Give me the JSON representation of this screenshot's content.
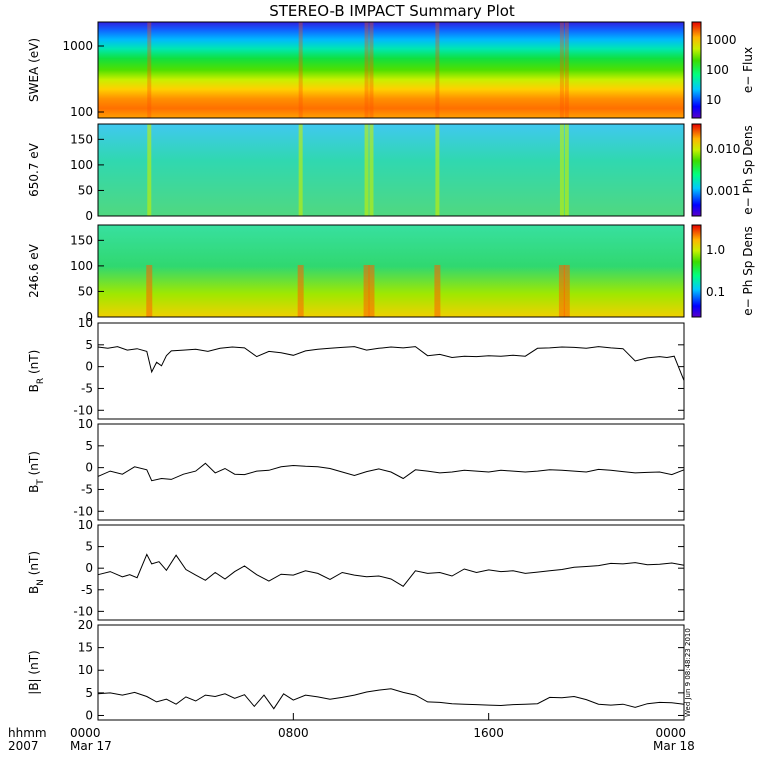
{
  "title": "STEREO-B IMPACT Summary Plot",
  "footer": {
    "hhmm": "hhmm",
    "year": "2007",
    "start_date": "Mar 17",
    "end_date": "Mar 18"
  },
  "timestamp": "Wed Jun 9 08:48:23 2010",
  "chart_data": [
    {
      "type": "heatmap",
      "ylabel": "SWEA (eV)",
      "ylog": true,
      "yticks": [
        "1000",
        "100"
      ],
      "colorbar": {
        "label": "e− Flux",
        "ticks": [
          "1000",
          "100",
          "10"
        ]
      },
      "description_values": {
        "flux_range_low": 10,
        "flux_range_high": 1000
      }
    },
    {
      "type": "heatmap",
      "ylabel": "650.7 eV",
      "ylim": [
        0,
        180
      ],
      "yticks": [
        "150",
        "100",
        "50",
        "0"
      ],
      "colorbar": {
        "label": "e− Ph Sp Dens",
        "ticks": [
          "0.010",
          "0.001"
        ]
      }
    },
    {
      "type": "heatmap",
      "ylabel": "246.6 eV",
      "ylim": [
        0,
        180
      ],
      "yticks": [
        "150",
        "100",
        "50",
        "0"
      ],
      "colorbar": {
        "label": "e− Ph Sp Dens",
        "ticks": [
          "1.0",
          "0.1"
        ]
      }
    },
    {
      "type": "line",
      "ylabel": "B_R (nT)",
      "ylim": [
        -12,
        10
      ],
      "yticks": [
        "10",
        "5",
        "0",
        "-5",
        "-10"
      ],
      "x": [
        0,
        0.4,
        0.8,
        1.2,
        1.6,
        2.0,
        2.2,
        2.4,
        2.6,
        2.8,
        3.0,
        3.5,
        4,
        4.5,
        5,
        5.5,
        6,
        6.5,
        7,
        7.5,
        8,
        8.5,
        9,
        9.5,
        10,
        10.5,
        11,
        11.5,
        12,
        12.5,
        13,
        13.5,
        14,
        14.5,
        15,
        15.5,
        16,
        16.5,
        17,
        17.5,
        18,
        18.5,
        19,
        19.5,
        20,
        20.5,
        21,
        21.5,
        22,
        22.5,
        23,
        23.3,
        23.6,
        24
      ],
      "y": [
        4.5,
        4.2,
        4.6,
        3.8,
        4.1,
        3.5,
        -1.2,
        1.0,
        0.2,
        2.5,
        3.6,
        3.8,
        4.0,
        3.5,
        4.2,
        4.5,
        4.3,
        2.3,
        3.5,
        3.2,
        2.6,
        3.6,
        4.0,
        4.2,
        4.4,
        4.6,
        3.8,
        4.2,
        4.5,
        4.3,
        4.6,
        2.5,
        2.8,
        2.1,
        2.4,
        2.3,
        2.5,
        2.4,
        2.6,
        2.4,
        4.2,
        4.3,
        4.5,
        4.4,
        4.2,
        4.6,
        4.3,
        4.1,
        1.3,
        2.0,
        2.3,
        2.1,
        2.4,
        -3.2
      ]
    },
    {
      "type": "line",
      "ylabel": "B_T (nT)",
      "ylim": [
        -12,
        10
      ],
      "yticks": [
        "10",
        "5",
        "0",
        "-5",
        "-10"
      ],
      "x": [
        0,
        0.5,
        1,
        1.5,
        2,
        2.2,
        2.6,
        3,
        3.5,
        4,
        4.4,
        4.8,
        5.2,
        5.6,
        6,
        6.5,
        7,
        7.5,
        8,
        8.5,
        9,
        9.5,
        10,
        10.5,
        11,
        11.5,
        12,
        12.5,
        13,
        13.5,
        14,
        14.5,
        15,
        15.5,
        16,
        16.5,
        17,
        17.5,
        18,
        18.5,
        19,
        19.5,
        20,
        20.5,
        21,
        21.5,
        22,
        22.5,
        23,
        23.5,
        24
      ],
      "y": [
        -2.0,
        -0.8,
        -1.5,
        0.2,
        -0.5,
        -3.0,
        -2.5,
        -2.7,
        -1.5,
        -0.8,
        1.0,
        -1.2,
        -0.2,
        -1.5,
        -1.6,
        -0.8,
        -0.6,
        0.2,
        0.5,
        0.3,
        0.2,
        -0.2,
        -1.0,
        -1.8,
        -0.9,
        -0.3,
        -1.0,
        -2.5,
        -0.5,
        -0.8,
        -1.2,
        -1.0,
        -0.6,
        -0.8,
        -1.0,
        -0.6,
        -0.8,
        -1.0,
        -0.8,
        -0.5,
        -0.6,
        -0.8,
        -1.0,
        -0.4,
        -0.6,
        -0.9,
        -1.2,
        -1.1,
        -1.0,
        -1.6,
        -0.5
      ]
    },
    {
      "type": "line",
      "ylabel": "B_N (nT)",
      "ylim": [
        -12,
        10
      ],
      "yticks": [
        "10",
        "5",
        "0",
        "-5",
        "-10"
      ],
      "x": [
        0,
        0.5,
        1,
        1.3,
        1.6,
        2.0,
        2.2,
        2.5,
        2.8,
        3.2,
        3.6,
        4,
        4.4,
        4.8,
        5.2,
        5.6,
        6,
        6.5,
        7,
        7.5,
        8,
        8.5,
        9,
        9.5,
        10,
        10.5,
        11,
        11.5,
        12,
        12.5,
        13,
        13.5,
        14,
        14.5,
        15,
        15.5,
        16,
        16.5,
        17,
        17.5,
        18,
        18.5,
        19,
        19.5,
        20,
        20.5,
        21,
        21.5,
        22,
        22.5,
        23,
        23.5,
        24
      ],
      "y": [
        -1.5,
        -0.8,
        -2.0,
        -1.5,
        -2.2,
        3.2,
        1.0,
        1.5,
        -0.5,
        3.0,
        -0.3,
        -1.6,
        -2.8,
        -1.0,
        -2.5,
        -0.8,
        0.5,
        -1.5,
        -3.0,
        -1.4,
        -1.6,
        -0.6,
        -1.2,
        -2.6,
        -1.0,
        -1.6,
        -2.0,
        -1.8,
        -2.5,
        -4.2,
        -0.6,
        -1.2,
        -1.0,
        -1.8,
        -0.2,
        -1.0,
        -0.4,
        -0.8,
        -0.6,
        -1.2,
        -0.9,
        -0.6,
        -0.3,
        0.2,
        0.4,
        0.6,
        1.1,
        1.0,
        1.3,
        0.8,
        0.9,
        1.2,
        0.7
      ]
    },
    {
      "type": "line",
      "ylabel": "|B| (nT)",
      "ylim": [
        -1,
        20
      ],
      "yticks": [
        "20",
        "15",
        "10",
        "5",
        "0"
      ],
      "x": [
        0,
        0.5,
        1,
        1.5,
        2,
        2.4,
        2.8,
        3.2,
        3.6,
        4,
        4.4,
        4.8,
        5.2,
        5.6,
        6,
        6.4,
        6.8,
        7.2,
        7.6,
        8,
        8.5,
        9,
        9.5,
        10,
        10.5,
        11,
        11.5,
        12,
        12.5,
        13,
        13.5,
        14,
        14.5,
        15,
        15.5,
        16,
        16.5,
        17,
        17.5,
        18,
        18.5,
        19,
        19.5,
        20,
        20.5,
        21,
        21.5,
        22,
        22.5,
        23,
        23.5,
        24
      ],
      "y": [
        4.8,
        5.0,
        4.5,
        5.1,
        4.2,
        3.0,
        3.6,
        2.5,
        4.1,
        3.2,
        4.5,
        4.2,
        4.8,
        3.8,
        4.6,
        2.0,
        4.5,
        1.5,
        4.8,
        3.4,
        4.5,
        4.1,
        3.6,
        4.0,
        4.5,
        5.2,
        5.6,
        5.9,
        5.1,
        4.5,
        3.0,
        2.9,
        2.6,
        2.5,
        2.4,
        2.3,
        2.2,
        2.4,
        2.5,
        2.6,
        4.0,
        3.9,
        4.2,
        3.5,
        2.5,
        2.3,
        2.5,
        1.8,
        2.6,
        2.9,
        2.8,
        2.5
      ]
    }
  ],
  "xaxis": {
    "range_hours": [
      0,
      24
    ],
    "ticks": [
      {
        "value": 0,
        "label": "0000"
      },
      {
        "value": 8,
        "label": "0800"
      },
      {
        "value": 16,
        "label": "1600"
      },
      {
        "value": 24,
        "label": "0000"
      }
    ]
  }
}
